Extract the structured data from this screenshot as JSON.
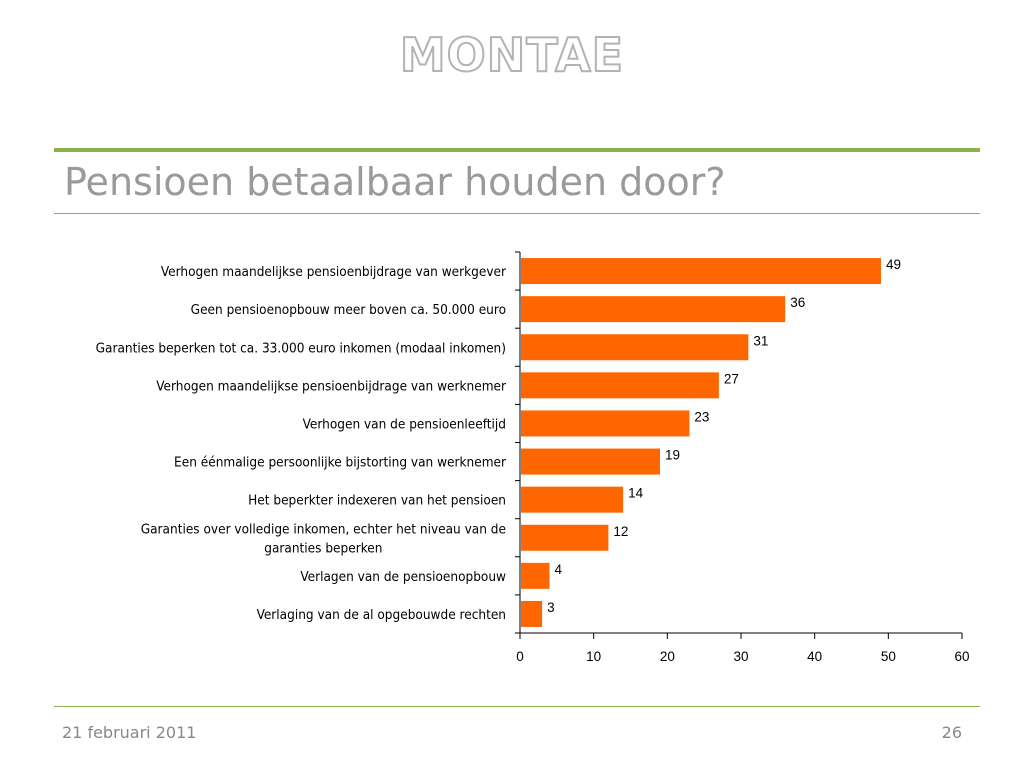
{
  "header": {
    "logo_text": "MONTAE"
  },
  "slide": {
    "title": "Pensioen betaalbaar houden door?"
  },
  "footer": {
    "date": "21 februari 2011",
    "page_number": "26"
  },
  "colors": {
    "bar": "#ff6600",
    "accent_line": "#8db04f",
    "title": "#9a9a9a",
    "axis": "#000000"
  },
  "chart_data": {
    "type": "bar",
    "orientation": "horizontal",
    "title": "",
    "xlabel": "",
    "ylabel": "",
    "xlim": [
      0,
      60
    ],
    "xticks": [
      0,
      10,
      20,
      30,
      40,
      50,
      60
    ],
    "grid": false,
    "legend": "none",
    "categories": [
      [
        "Verhogen maandelijkse pensioenbijdrage van werkgever"
      ],
      [
        "Geen pensioenopbouw meer boven ca. 50.000 euro"
      ],
      [
        "Garanties beperken tot ca. 33.000 euro inkomen (modaal inkomen)"
      ],
      [
        "Verhogen maandelijkse pensioenbijdrage van werknemer"
      ],
      [
        "Verhogen van de pensioenleeftijd"
      ],
      [
        "Een éénmalige persoonlijke bijstorting van werknemer"
      ],
      [
        "Het beperkter indexeren van het pensioen"
      ],
      [
        "Garanties over volledige inkomen, echter het niveau van de",
        "garanties beperken"
      ],
      [
        "Verlagen van de pensioenopbouw"
      ],
      [
        "Verlaging van de al opgebouwde rechten"
      ]
    ],
    "values": [
      49,
      36,
      31,
      27,
      23,
      19,
      14,
      12,
      4,
      3
    ]
  }
}
